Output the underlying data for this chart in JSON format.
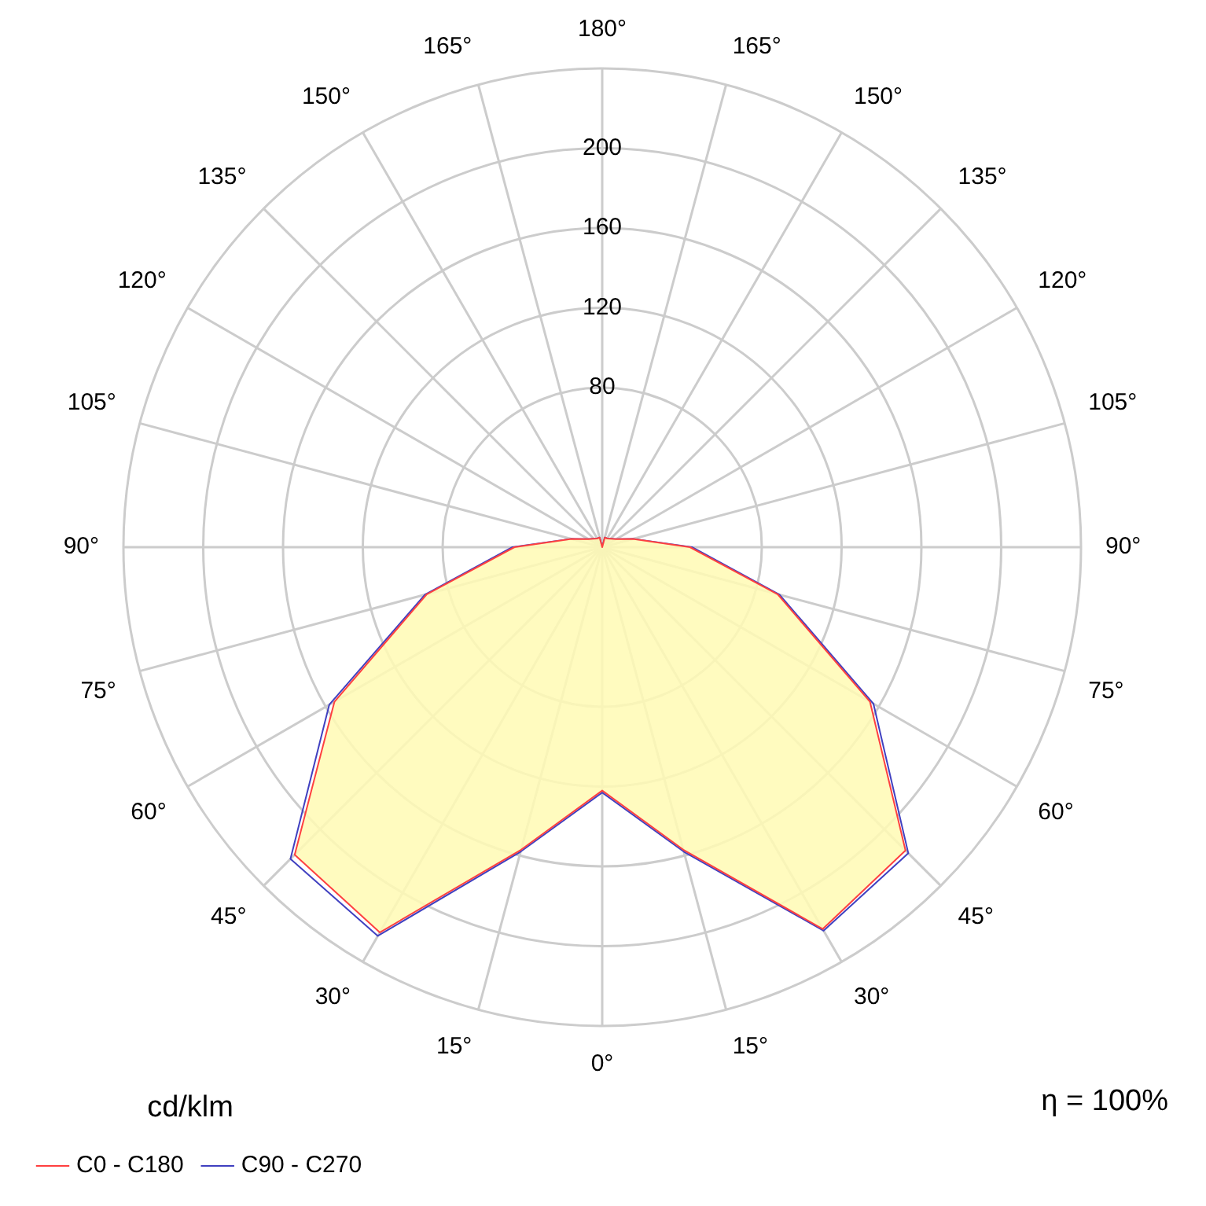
{
  "chart_data": {
    "type": "radar",
    "ylabel": "cd/klm",
    "annotations": [
      "η = 100%"
    ],
    "categories": [
      "180°",
      "165°",
      "150°",
      "135°",
      "120°",
      "105°",
      "90°",
      "75°",
      "60°",
      "45°",
      "30°",
      "15°",
      "0°",
      "15°",
      "30°",
      "45°",
      "60°",
      "75°",
      "90°",
      "105°",
      "120°",
      "135°",
      "150°",
      "165°"
    ],
    "series": [
      {
        "name": "C0 - C180",
        "color": "#ff4040",
        "values": [
          0,
          5,
          5,
          6,
          8,
          16,
          44,
          91,
          155,
          215,
          221,
          157,
          122,
          157,
          223,
          218,
          155,
          91,
          44,
          16,
          8,
          6,
          5,
          5
        ]
      },
      {
        "name": "C90 - C270",
        "color": "#4040c0",
        "values": [
          0,
          5,
          5,
          6,
          8,
          16,
          45,
          92,
          157,
          217,
          222,
          158,
          123,
          158,
          225,
          221,
          158,
          92,
          45,
          16,
          8,
          6,
          5,
          5
        ]
      }
    ],
    "ylim": [
      0,
      240
    ],
    "yticks": [
      80,
      120,
      160,
      200
    ],
    "grid": true,
    "legend": "bottom",
    "marker": "none",
    "line_style": "solid"
  }
}
